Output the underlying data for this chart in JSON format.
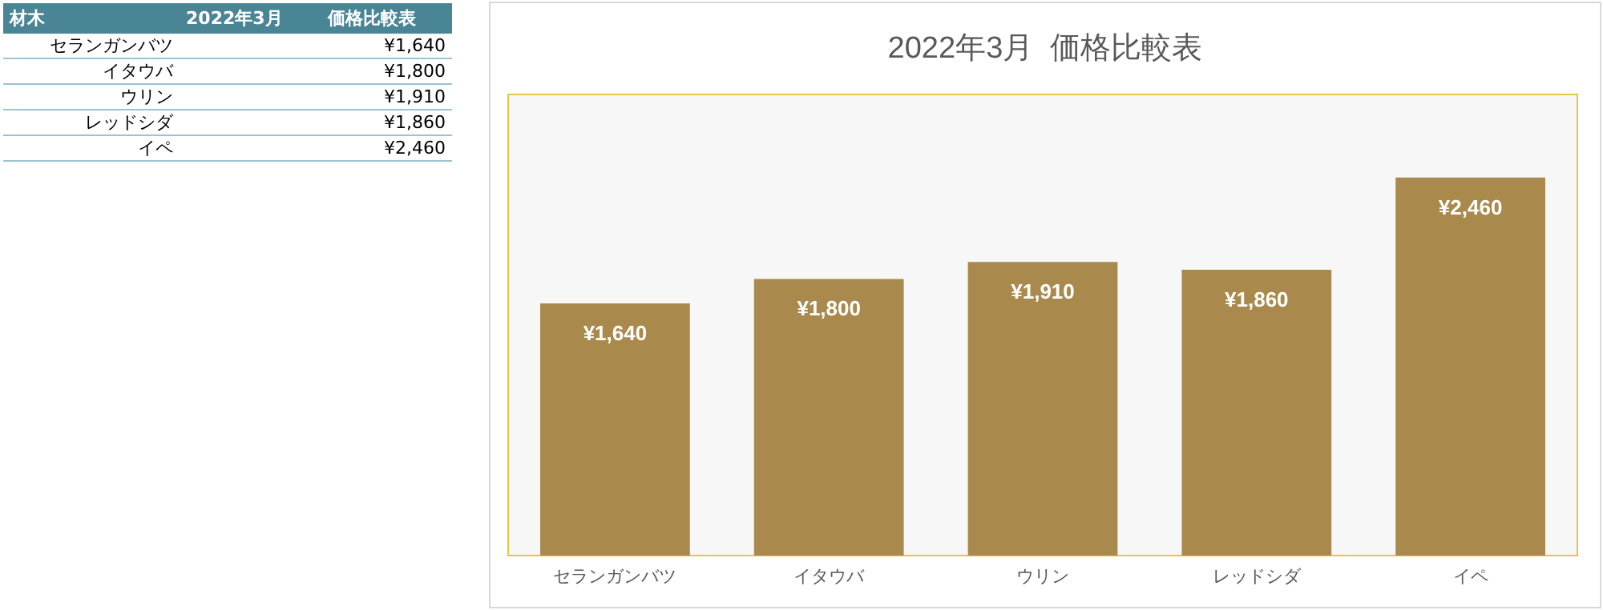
{
  "chart_data": {
    "type": "bar",
    "title": "2022年3月  価格比較表",
    "categories": [
      "セランガンバツ",
      "イタウバ",
      "ウリン",
      "レッドシダ",
      "イペ"
    ],
    "values": [
      1640,
      1800,
      1910,
      1860,
      2460
    ],
    "value_labels": [
      "¥1,640",
      "¥1,800",
      "¥1,910",
      "¥1,860",
      "¥2,460"
    ],
    "color": "#a98a4c",
    "ylim": [
      0,
      3000
    ],
    "tick_labels": "x",
    "annotations": [
      "材木",
      "2022年3月",
      "価格比較表"
    ]
  }
}
